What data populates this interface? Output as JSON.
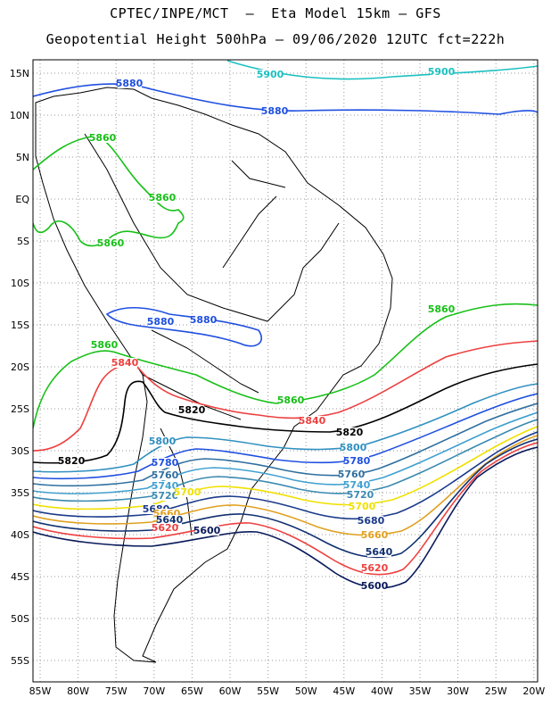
{
  "title_line1": "CPTEC/INPE/MCT  –  Eta Model 15km – GFS",
  "title_line2": "Geopotential Height 500hPa – 09/06/2020 12UTC fct=222h",
  "lat_labels": [
    "15N",
    "10N",
    "5N",
    "EQ",
    "5S",
    "10S",
    "15S",
    "20S",
    "25S",
    "30S",
    "35S",
    "40S",
    "45S",
    "50S",
    "55S"
  ],
  "lon_labels": [
    "85W",
    "80W",
    "75W",
    "70W",
    "65W",
    "60W",
    "55W",
    "50W",
    "45W",
    "40W",
    "35W",
    "30W",
    "25W",
    "20W"
  ],
  "contours": [
    {
      "value": "5900",
      "color": "#1cc0c0",
      "labels": [
        "5900",
        "5900"
      ]
    },
    {
      "value": "5880",
      "color": "#1f4fe0",
      "labels": [
        "5880",
        "5880",
        "5880",
        "5880"
      ]
    },
    {
      "value": "5860",
      "color": "#18c018",
      "labels": [
        "5860",
        "5860",
        "5860",
        "5860",
        "5860",
        "5860"
      ]
    },
    {
      "value": "5840",
      "color": "#ee4040",
      "labels": [
        "5840",
        "5840"
      ]
    },
    {
      "value": "5820",
      "color": "#000000",
      "labels": [
        "5820",
        "5820",
        "5820"
      ]
    },
    {
      "value": "5800",
      "color": "#3090c0",
      "labels": [
        "5800",
        "5800"
      ]
    },
    {
      "value": "5780",
      "color": "#2050e0",
      "labels": [
        "5780",
        "5780"
      ]
    },
    {
      "value": "5760",
      "color": "#3070a0",
      "labels": [
        "5760",
        "5760"
      ]
    },
    {
      "value": "5740",
      "color": "#40a0d0",
      "labels": [
        "5740",
        "5740"
      ]
    },
    {
      "value": "5720",
      "color": "#3a8ab0",
      "labels": [
        "5720",
        "5720"
      ]
    },
    {
      "value": "5700",
      "color": "#f0e000",
      "labels": [
        "5700",
        "5700"
      ]
    },
    {
      "value": "5680",
      "color": "#1a3a8a",
      "labels": [
        "5680",
        "5680"
      ]
    },
    {
      "value": "5660",
      "color": "#e0a020",
      "labels": [
        "5660",
        "5660"
      ]
    },
    {
      "value": "5640",
      "color": "#103070",
      "labels": [
        "5640",
        "5640"
      ]
    },
    {
      "value": "5620",
      "color": "#ee4040",
      "labels": [
        "5620",
        "5620"
      ]
    },
    {
      "value": "5600",
      "color": "#0a1a5a",
      "labels": [
        "5600",
        "5600"
      ]
    }
  ]
}
